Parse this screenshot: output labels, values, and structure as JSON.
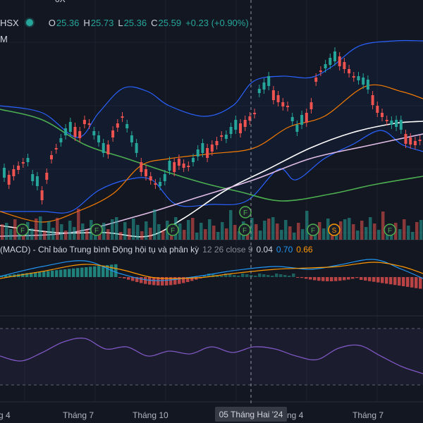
{
  "header": {
    "top_cut": "0X",
    "symbol": "HSX",
    "o_key": "O",
    "o_val": "25.36",
    "h_key": "H",
    "h_val": "25.73",
    "l_key": "L",
    "l_val": "25.36",
    "c_key": "C",
    "c_val": "25.59",
    "change": "+0.23 (+0.90%)",
    "sub": "M"
  },
  "macd": {
    "title": "(MACD) - Chỉ báo Trung bình Động hội tụ và phân kỳ",
    "params": "12 26 close 9",
    "v1": "0.04",
    "v2": "0.70",
    "v3": "0.66"
  },
  "xaxis": {
    "labels": [
      "g 4",
      "Tháng 7",
      "Tháng 10",
      "ng 4",
      "Tháng 7"
    ],
    "crosshair": "05 Tháng Hai '24"
  },
  "markers": [
    "F",
    "F",
    "F",
    "F",
    "F",
    "F",
    "S",
    "F"
  ],
  "colors": {
    "bg": "#131722",
    "up": "#26a69a",
    "down": "#ef5350",
    "bb": "#2962ff",
    "ema_orange": "#f57c00",
    "ma_green": "#4caf50",
    "ma_white": "#ffffff",
    "ma_pink": "#e1bee7",
    "rsi": "#7e57c2"
  }
}
